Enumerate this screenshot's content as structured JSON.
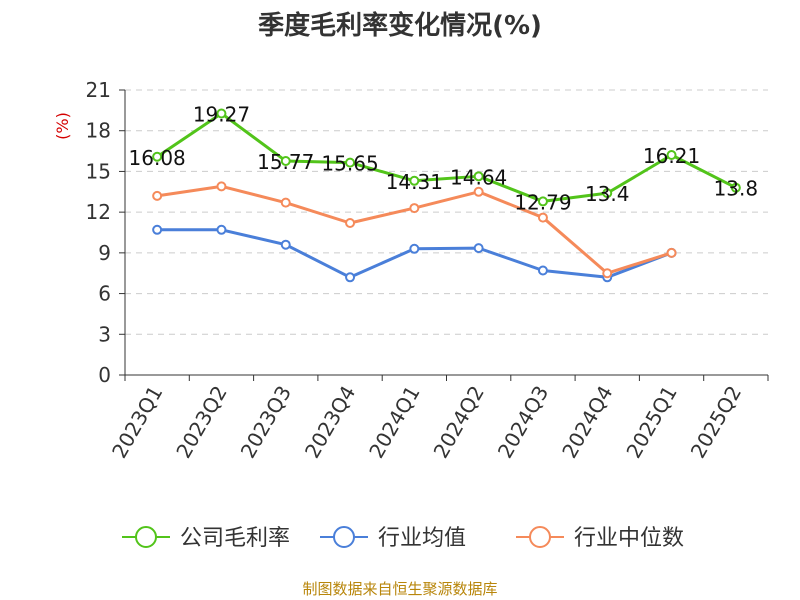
{
  "chart_data": {
    "type": "line",
    "title": "季度毛利率变化情况(%)",
    "ylabel": "(%)",
    "ylim": [
      0,
      21
    ],
    "yticks": [
      0,
      3,
      6,
      9,
      12,
      15,
      18,
      21
    ],
    "categories": [
      "2023Q1",
      "2023Q2",
      "2023Q3",
      "2023Q4",
      "2024Q1",
      "2024Q2",
      "2024Q3",
      "2024Q4",
      "2025Q1",
      "2025Q2"
    ],
    "grid": true,
    "legend_position": "bottom",
    "series": [
      {
        "name": "公司毛利率",
        "color": "#52c41a",
        "values": [
          16.08,
          19.27,
          15.77,
          15.65,
          14.31,
          14.64,
          12.79,
          13.4,
          16.21,
          13.8
        ],
        "labels": [
          "16.08",
          "19.27",
          "15.77",
          "15.65",
          "14.31",
          "14.64",
          "12.79",
          "13.4",
          "16.21",
          "13.8"
        ]
      },
      {
        "name": "行业均值",
        "color": "#4a7fd9",
        "values": [
          10.7,
          10.7,
          9.6,
          7.2,
          9.3,
          9.35,
          7.7,
          7.2,
          9.0,
          null
        ]
      },
      {
        "name": "行业中位数",
        "color": "#f58a5a",
        "values": [
          13.2,
          13.9,
          12.7,
          11.2,
          12.3,
          13.5,
          11.6,
          7.5,
          9.0,
          null
        ]
      }
    ]
  },
  "source": "制图数据来自恒生聚源数据库"
}
